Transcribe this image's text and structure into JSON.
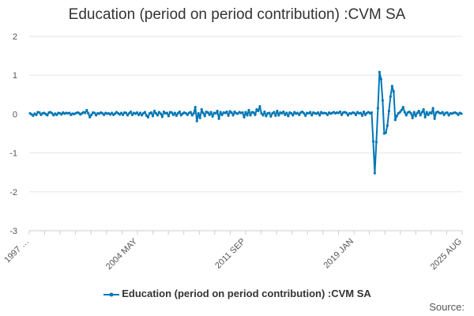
{
  "chart_data": {
    "type": "line",
    "title": "Education (period on period contribution) :CVM SA",
    "xlabel": "",
    "ylabel": "",
    "ylim": [
      -3,
      2
    ],
    "yticks": [
      "2",
      "1",
      "0",
      "-1",
      "-2",
      "-3"
    ],
    "x_tick_labels": [
      "1997 …",
      "2004 MAY",
      "2011 SEP",
      "2019 JAN",
      "2025 AUG"
    ],
    "grid": true,
    "legend_position": "bottom",
    "series": [
      {
        "name": "Education (period on period contribution) :CVM SA",
        "color": "#0077b6",
        "values": [
          0.02,
          -0.01,
          -0.04,
          0.01,
          -0.02,
          0.05,
          0.04,
          -0.02,
          0.02,
          0.03,
          0.0,
          -0.03,
          0.04,
          0.05,
          0.02,
          -0.03,
          0.01,
          -0.02,
          0.03,
          0.02,
          -0.01,
          0.04,
          0.01,
          0.03,
          0.02,
          0.03,
          -0.02,
          0.01,
          0.0,
          0.02,
          0.04,
          0.03,
          -0.01,
          0.02,
          0.05,
          0.03,
          0.1,
          0.02,
          -0.08,
          -0.02,
          0.04,
          0.03,
          -0.03,
          0.02,
          0.01,
          0.04,
          0.02,
          -0.02,
          0.03,
          0.01,
          0.02,
          -0.01,
          0.03,
          -0.02,
          0.01,
          0.05,
          0.02,
          -0.01,
          0.03,
          -0.02,
          0.04,
          0.03,
          -0.03,
          0.02,
          0.06,
          -0.02,
          0.03,
          0.01,
          0.04,
          -0.02,
          0.03,
          -0.03,
          0.02,
          0.05,
          -0.04,
          -0.08,
          0.02,
          0.04,
          -0.05,
          0.08,
          0.02,
          -0.03,
          0.05,
          0.01,
          -0.07,
          0.06,
          0.02,
          0.03,
          -0.05,
          0.05,
          0.04,
          -0.02,
          0.03,
          -0.04,
          0.02,
          0.06,
          -0.03,
          0.01,
          0.04,
          0.02,
          -0.02,
          0.03,
          0.05,
          -0.03,
          0.02,
          0.18,
          -0.18,
          0.02,
          -0.1,
          0.12,
          0.03,
          -0.05,
          0.06,
          0.04,
          -0.02,
          0.05,
          -0.06,
          0.03,
          0.02,
          0.08,
          -0.12,
          0.05,
          -0.02,
          0.04,
          0.03,
          0.06,
          -0.04,
          0.07,
          0.04,
          -0.03,
          0.06,
          0.02,
          0.01,
          0.05,
          0.03,
          0.04,
          -0.08,
          0.05,
          -0.03,
          0.1,
          -0.03,
          0.05,
          0.04,
          -0.02,
          0.12,
          0.08,
          0.2,
          0.02,
          -0.03,
          0.06,
          -0.05,
          0.02,
          0.03,
          -0.06,
          0.02,
          0.05,
          -0.04,
          0.08,
          -0.03,
          0.04,
          0.02,
          0.06,
          -0.02,
          0.03,
          -0.05,
          0.04,
          0.02,
          -0.03,
          0.05,
          0.01,
          0.03,
          -0.02,
          0.04,
          0.06,
          0.02,
          -0.04,
          0.03,
          0.02,
          0.05,
          -0.03,
          0.04,
          0.02,
          0.01,
          0.04,
          -0.03,
          0.05,
          0.02,
          0.03,
          0.02,
          -0.02,
          0.04,
          0.01,
          0.03,
          0.05,
          0.02,
          0.04,
          0.03,
          0.06,
          -0.02,
          0.04,
          0.05,
          0.03,
          -0.03,
          0.02,
          0.01,
          0.04,
          0.03,
          -0.02,
          0.05,
          0.02,
          0.03,
          -0.04,
          0.06,
          -0.02,
          0.03,
          0.05,
          0.02,
          0.04,
          -0.7,
          -1.52,
          -0.72,
          0.15,
          1.08,
          0.9,
          0.35,
          -0.5,
          -0.48,
          -0.3,
          0.08,
          0.45,
          0.72,
          0.58,
          -0.15,
          -0.05,
          0.02,
          0.05,
          0.1,
          0.18,
          0.05,
          -0.03,
          0.04,
          0.06,
          0.02,
          -0.1,
          0.05,
          -0.05,
          0.03,
          0.08,
          -0.03,
          0.05,
          0.12,
          -0.08,
          0.05,
          -0.02,
          0.04,
          0.02,
          0.15,
          -0.12,
          0.04,
          0.06,
          0.03,
          0.02,
          0.05,
          -0.02,
          0.03,
          0.04,
          -0.03,
          0.02,
          0.01,
          0.03,
          0.04,
          0.02,
          -0.02,
          0.03,
          0.01
        ]
      }
    ]
  },
  "legend": {
    "label": "Education (period on period contribution) :CVM SA"
  },
  "footer": {
    "source": "Source:"
  }
}
